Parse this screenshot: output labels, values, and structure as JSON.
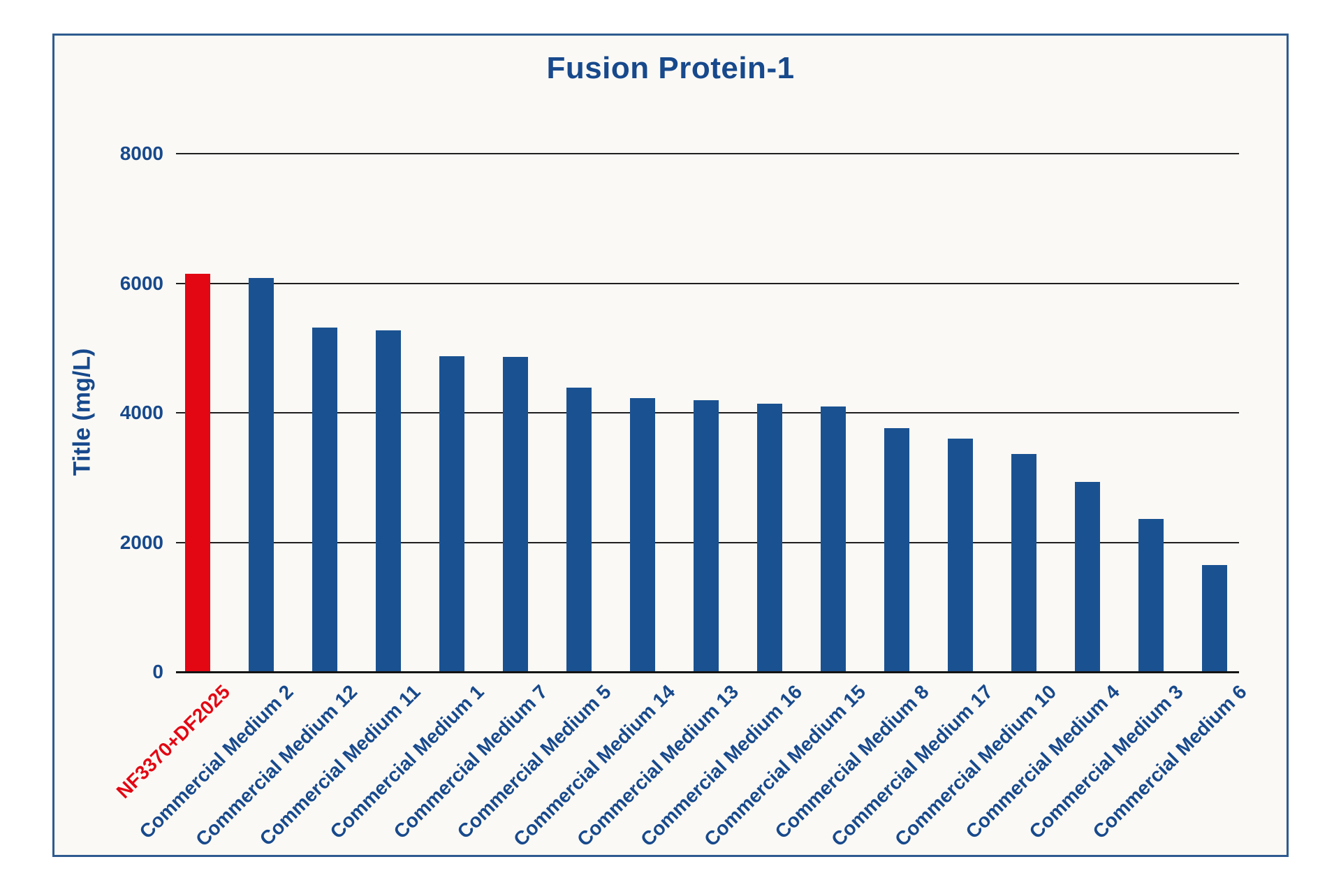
{
  "page": {
    "background": "#ffffff"
  },
  "frame": {
    "border_color": "#2e5b90",
    "background": "#fbf9f5"
  },
  "chart_data": {
    "type": "bar",
    "title": "Fusion Protein-1",
    "xlabel": "",
    "ylabel": "Title (mg/L)",
    "ylim": [
      0,
      8000
    ],
    "yticks": [
      0,
      2000,
      4000,
      6000,
      8000
    ],
    "grid": "horizontal-black-lines",
    "legend_position": "none",
    "x_tick_rotation_deg": 45,
    "categories": [
      "NF3370+DF2025",
      "Commercial Medium 2",
      "Commercial Medium 12",
      "Commercial Medium 11",
      "Commercial Medium 1",
      "Commercial Medium 7",
      "Commercial Medium 5",
      "Commercial Medium 14",
      "Commercial Medium 13",
      "Commercial Medium 16",
      "Commercial Medium 15",
      "Commercial Medium 8",
      "Commercial Medium 17",
      "Commercial Medium 10",
      "Commercial Medium 4",
      "Commercial Medium 3",
      "Commercial Medium 6"
    ],
    "values": [
      6150,
      6080,
      5320,
      5270,
      4870,
      4860,
      4390,
      4230,
      4190,
      4140,
      4100,
      3760,
      3600,
      3360,
      2930,
      2360,
      1650
    ],
    "highlight_index": 0,
    "colors": {
      "highlight_bar": "#e30613",
      "default_bar": "#1a5291",
      "highlight_label": "#e30613",
      "default_label": "#17498c",
      "title_text": "#17498c",
      "axis_text": "#17498c",
      "gridline": "#1f1f1f",
      "axis_line": "#141414"
    }
  }
}
